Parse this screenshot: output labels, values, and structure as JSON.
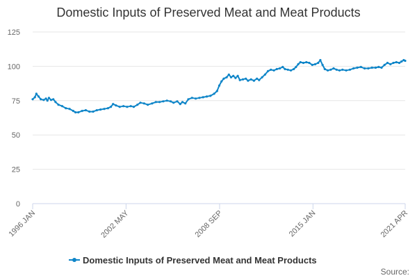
{
  "chart_data": {
    "type": "line",
    "title": "Domestic Inputs of Preserved Meat and Meat Products",
    "xlabel": "",
    "ylabel": "",
    "ylim": [
      0,
      125
    ],
    "yticks": [
      0,
      25,
      50,
      75,
      100,
      125
    ],
    "xlim": [
      1996.0,
      2021.25
    ],
    "xticks": [
      {
        "label": "1996 JAN",
        "x": 1996.0
      },
      {
        "label": "2002 MAY",
        "x": 2002.33
      },
      {
        "label": "2008 SEP",
        "x": 2008.67
      },
      {
        "label": "2015 JAN",
        "x": 2015.0
      },
      {
        "label": "2021 APR",
        "x": 2021.25
      }
    ],
    "legend": "bottom-center",
    "source_label": "Source:",
    "colors": {
      "series": "#0e85c8"
    },
    "series": [
      {
        "name": "Domestic Inputs of Preserved Meat and Meat Products",
        "points": [
          [
            1996.0,
            76
          ],
          [
            1996.15,
            77.5
          ],
          [
            1996.25,
            80
          ],
          [
            1996.4,
            78
          ],
          [
            1996.55,
            76
          ],
          [
            1996.75,
            75.5
          ],
          [
            1996.9,
            76.5
          ],
          [
            1997.0,
            75
          ],
          [
            1997.1,
            77
          ],
          [
            1997.25,
            75.5
          ],
          [
            1997.4,
            76
          ],
          [
            1997.55,
            74
          ],
          [
            1997.75,
            72
          ],
          [
            1998.0,
            71
          ],
          [
            1998.25,
            69.5
          ],
          [
            1998.5,
            69
          ],
          [
            1998.75,
            67.5
          ],
          [
            1998.9,
            66.5
          ],
          [
            1999.1,
            66.5
          ],
          [
            1999.35,
            67.5
          ],
          [
            1999.6,
            68
          ],
          [
            1999.85,
            67
          ],
          [
            2000.1,
            67
          ],
          [
            2000.35,
            68
          ],
          [
            2000.6,
            68.5
          ],
          [
            2000.85,
            69
          ],
          [
            2001.1,
            69.5
          ],
          [
            2001.3,
            70.5
          ],
          [
            2001.45,
            72.5
          ],
          [
            2001.65,
            71.5
          ],
          [
            2001.9,
            70.5
          ],
          [
            2002.15,
            71
          ],
          [
            2002.4,
            70.5
          ],
          [
            2002.65,
            71
          ],
          [
            2002.85,
            70.5
          ],
          [
            2003.1,
            72
          ],
          [
            2003.3,
            73.5
          ],
          [
            2003.55,
            73
          ],
          [
            2003.8,
            72
          ],
          [
            2004.1,
            73
          ],
          [
            2004.35,
            74
          ],
          [
            2004.6,
            74
          ],
          [
            2004.85,
            74.5
          ],
          [
            2005.1,
            75
          ],
          [
            2005.35,
            74.5
          ],
          [
            2005.55,
            73.5
          ],
          [
            2005.8,
            74.5
          ],
          [
            2006.0,
            72.5
          ],
          [
            2006.15,
            74
          ],
          [
            2006.35,
            73
          ],
          [
            2006.55,
            76
          ],
          [
            2006.8,
            77
          ],
          [
            2007.05,
            76.5
          ],
          [
            2007.3,
            77
          ],
          [
            2007.55,
            77.5
          ],
          [
            2007.8,
            78
          ],
          [
            2008.05,
            78.5
          ],
          [
            2008.3,
            80
          ],
          [
            2008.5,
            82
          ],
          [
            2008.65,
            86
          ],
          [
            2008.8,
            89
          ],
          [
            2008.95,
            91
          ],
          [
            2009.15,
            92
          ],
          [
            2009.3,
            94
          ],
          [
            2009.45,
            92
          ],
          [
            2009.6,
            93
          ],
          [
            2009.75,
            91.5
          ],
          [
            2009.9,
            93
          ],
          [
            2010.05,
            90
          ],
          [
            2010.25,
            90.5
          ],
          [
            2010.45,
            91
          ],
          [
            2010.6,
            89.5
          ],
          [
            2010.8,
            90.5
          ],
          [
            2011.0,
            89.5
          ],
          [
            2011.2,
            91
          ],
          [
            2011.35,
            90
          ],
          [
            2011.55,
            92
          ],
          [
            2011.75,
            94
          ],
          [
            2011.95,
            96.5
          ],
          [
            2012.15,
            97.5
          ],
          [
            2012.35,
            97
          ],
          [
            2012.55,
            98
          ],
          [
            2012.75,
            98.5
          ],
          [
            2012.95,
            99.5
          ],
          [
            2013.1,
            98
          ],
          [
            2013.3,
            97.5
          ],
          [
            2013.5,
            97
          ],
          [
            2013.7,
            98
          ],
          [
            2013.85,
            99.5
          ],
          [
            2014.0,
            101.5
          ],
          [
            2014.15,
            103
          ],
          [
            2014.35,
            102.5
          ],
          [
            2014.55,
            103
          ],
          [
            2014.75,
            102.5
          ],
          [
            2014.95,
            101
          ],
          [
            2015.15,
            101.5
          ],
          [
            2015.35,
            102.5
          ],
          [
            2015.5,
            104.5
          ],
          [
            2015.65,
            101
          ],
          [
            2015.8,
            98
          ],
          [
            2016.0,
            97
          ],
          [
            2016.2,
            97.5
          ],
          [
            2016.4,
            98.5
          ],
          [
            2016.6,
            97.5
          ],
          [
            2016.8,
            97
          ],
          [
            2017.0,
            97.5
          ],
          [
            2017.25,
            97
          ],
          [
            2017.5,
            97.5
          ],
          [
            2017.75,
            98.5
          ],
          [
            2018.0,
            99
          ],
          [
            2018.25,
            99.5
          ],
          [
            2018.5,
            98.5
          ],
          [
            2018.75,
            98.5
          ],
          [
            2019.0,
            99
          ],
          [
            2019.25,
            99
          ],
          [
            2019.45,
            99.5
          ],
          [
            2019.65,
            99
          ],
          [
            2019.85,
            101
          ],
          [
            2020.05,
            102.5
          ],
          [
            2020.25,
            101.5
          ],
          [
            2020.45,
            102.5
          ],
          [
            2020.65,
            103
          ],
          [
            2020.85,
            102.5
          ],
          [
            2021.0,
            103.5
          ],
          [
            2021.15,
            104.5
          ],
          [
            2021.25,
            104
          ]
        ]
      }
    ]
  }
}
